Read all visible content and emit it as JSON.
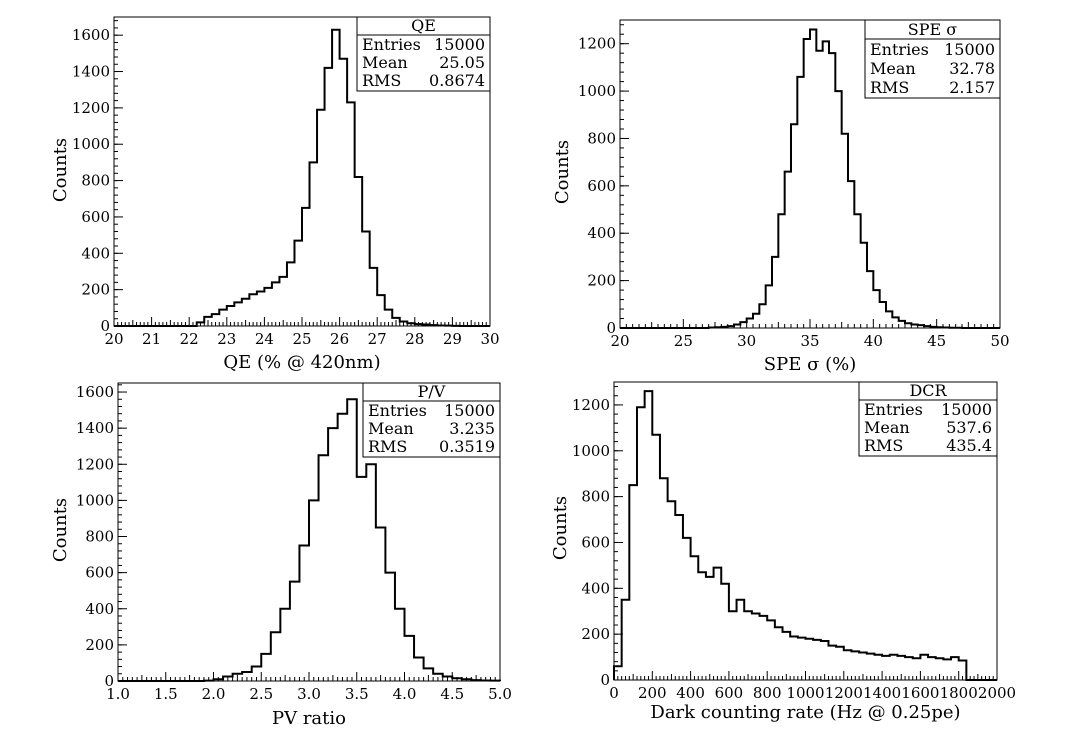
{
  "chart_data": [
    {
      "type": "histogram",
      "xlabel": "QE (% @ 420nm)",
      "ylabel": "Counts",
      "xlim": [
        20,
        30
      ],
      "ylim": [
        0,
        1700
      ],
      "xticks": [
        20,
        21,
        22,
        23,
        24,
        25,
        26,
        27,
        28,
        29,
        30
      ],
      "yticks": [
        0,
        200,
        400,
        600,
        800,
        1000,
        1200,
        1400,
        1600
      ],
      "bin_width": 0.2,
      "x_start": 20,
      "counts": [
        0,
        0,
        0,
        0,
        0,
        0,
        0,
        0,
        0,
        0,
        0,
        20,
        50,
        65,
        90,
        110,
        130,
        150,
        175,
        190,
        210,
        240,
        270,
        350,
        470,
        650,
        900,
        1190,
        1420,
        1630,
        1470,
        1230,
        820,
        520,
        320,
        170,
        90,
        45,
        25,
        15,
        10,
        8,
        5,
        3,
        2,
        1,
        0,
        0,
        0,
        0
      ],
      "stats": {
        "name": "QE",
        "rows": [
          [
            "Entries",
            "15000"
          ],
          [
            "Mean",
            "25.05"
          ],
          [
            "RMS",
            "0.8674"
          ]
        ]
      }
    },
    {
      "type": "histogram",
      "xlabel": "SPE σ (%)",
      "ylabel": "Counts",
      "xlim": [
        20,
        50
      ],
      "ylim": [
        0,
        1300
      ],
      "xticks": [
        20,
        25,
        30,
        35,
        40,
        45,
        50
      ],
      "yticks": [
        0,
        200,
        400,
        600,
        800,
        1000,
        1200
      ],
      "bin_width": 0.5,
      "x_start": 20,
      "counts": [
        0,
        0,
        0,
        0,
        0,
        0,
        0,
        0,
        0,
        0,
        0,
        0,
        0,
        0,
        2,
        3,
        5,
        8,
        15,
        25,
        40,
        60,
        100,
        180,
        300,
        480,
        660,
        860,
        1060,
        1220,
        1260,
        1170,
        1210,
        1160,
        1000,
        820,
        620,
        480,
        360,
        240,
        160,
        110,
        70,
        45,
        30,
        20,
        15,
        12,
        8,
        5,
        3,
        2,
        1,
        1,
        0,
        0,
        0,
        0,
        0,
        0
      ],
      "stats": {
        "name": "SPE σ",
        "rows": [
          [
            "Entries",
            "15000"
          ],
          [
            "Mean",
            "32.78"
          ],
          [
            "RMS",
            "2.157"
          ]
        ]
      }
    },
    {
      "type": "histogram",
      "xlabel": "PV ratio",
      "ylabel": "Counts",
      "xlim": [
        1.0,
        5.0
      ],
      "ylim": [
        0,
        1650
      ],
      "xticks": [
        "1.0",
        "1.5",
        "2.0",
        "2.5",
        "3.0",
        "3.5",
        "4.0",
        "4.5",
        "5.0"
      ],
      "yticks": [
        0,
        200,
        400,
        600,
        800,
        1000,
        1200,
        1400,
        1600
      ],
      "bin_width": 0.1,
      "x_start": 1.0,
      "counts": [
        0,
        0,
        0,
        0,
        0,
        0,
        0,
        0,
        0,
        2,
        10,
        25,
        40,
        50,
        80,
        150,
        270,
        400,
        550,
        750,
        1000,
        1250,
        1400,
        1480,
        1560,
        1130,
        1200,
        850,
        600,
        400,
        250,
        130,
        70,
        40,
        25,
        15,
        10,
        5,
        3,
        2
      ],
      "stats": {
        "name": "P/V",
        "rows": [
          [
            "Entries",
            "15000"
          ],
          [
            "Mean",
            "3.235"
          ],
          [
            "RMS",
            "0.3519"
          ]
        ]
      }
    },
    {
      "type": "histogram",
      "xlabel": "Dark counting rate (Hz @ 0.25pe)",
      "ylabel": "Counts",
      "xlim": [
        0,
        2000
      ],
      "ylim": [
        0,
        1300
      ],
      "xticks": [
        0,
        200,
        400,
        600,
        800,
        1000,
        1200,
        1400,
        1600,
        1800,
        2000
      ],
      "yticks": [
        0,
        200,
        400,
        600,
        800,
        1000,
        1200
      ],
      "bin_width": 40,
      "x_start": 0,
      "counts": [
        60,
        350,
        850,
        1190,
        1260,
        1070,
        880,
        780,
        720,
        620,
        540,
        470,
        450,
        490,
        420,
        300,
        350,
        300,
        290,
        280,
        260,
        230,
        210,
        190,
        185,
        180,
        175,
        170,
        150,
        145,
        130,
        125,
        120,
        115,
        110,
        105,
        110,
        105,
        100,
        95,
        110,
        100,
        95,
        90,
        100,
        85,
        0,
        0,
        0,
        0
      ]
    }
  ],
  "dcr_stats": {
    "name": "DCR",
    "rows": [
      [
        "Entries",
        "15000"
      ],
      [
        "Mean",
        "537.6"
      ],
      [
        "RMS",
        "435.4"
      ]
    ]
  }
}
